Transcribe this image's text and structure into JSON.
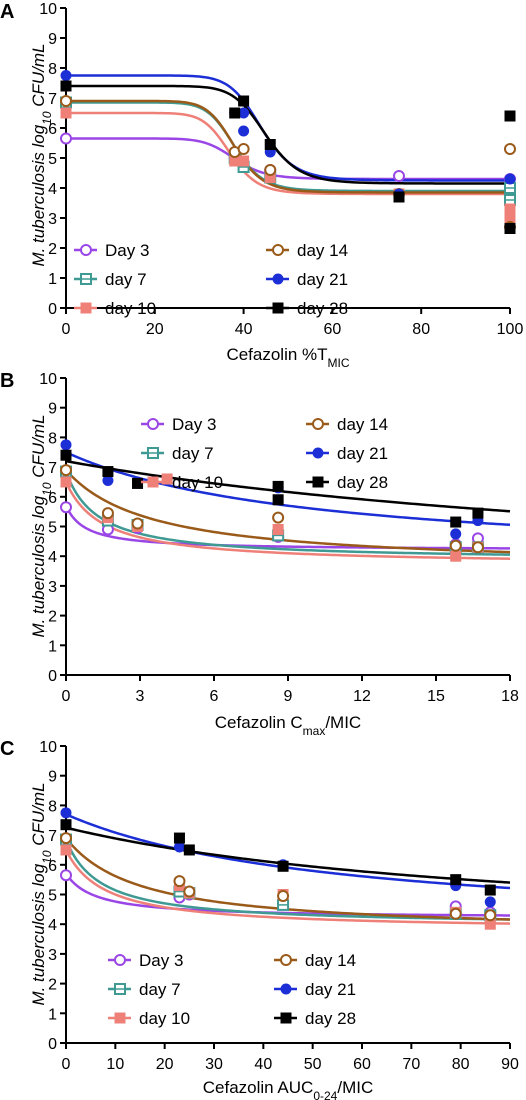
{
  "colors": {
    "day3": "#9a46e6",
    "day7": "#3f9a93",
    "day10": "#ee8078",
    "day14": "#9a5a1a",
    "day21": "#1c2fd6",
    "day28": "#000000"
  },
  "chart_data": [
    {
      "panel": "A",
      "type": "scatter",
      "x_prefix": "Cefazolin %T",
      "x_sub": "MIC",
      "x_suffix": "",
      "y_prefix": "M. tuberculosis log",
      "y_sub": "10",
      "y_suffix": " CFU/mL",
      "xlim": [
        0,
        100
      ],
      "ylim": [
        0,
        10
      ],
      "xticks": [
        0,
        20,
        40,
        60,
        80,
        100
      ],
      "yticks": [
        0,
        1,
        2,
        3,
        4,
        5,
        6,
        7,
        8,
        9,
        10
      ],
      "legend": [
        {
          "key": "day3",
          "label": "Day 3"
        },
        {
          "key": "day14",
          "label": "day 14"
        },
        {
          "key": "day7",
          "label": "day 7"
        },
        {
          "key": "day21",
          "label": "day 21"
        },
        {
          "key": "day10",
          "label": "day 10"
        },
        {
          "key": "day28",
          "label": "day 28"
        }
      ],
      "series": [
        {
          "key": "day3",
          "name": "Day 3",
          "marker": "open-circle",
          "points": [
            [
              0,
              5.65
            ],
            [
              38,
              5.0
            ],
            [
              40,
              4.85
            ],
            [
              46,
              4.6
            ],
            [
              75,
              4.4
            ],
            [
              100,
              4.3
            ],
            [
              100,
              4.0
            ],
            [
              100,
              3.8
            ]
          ],
          "curve": {
            "model": "sigmoid",
            "top": 5.65,
            "bottom": 4.3,
            "ec50": 38,
            "h": 11
          }
        },
        {
          "key": "day7",
          "name": "day 7",
          "marker": "open-square",
          "points": [
            [
              0,
              6.85
            ],
            [
              38,
              5.0
            ],
            [
              40,
              4.7
            ],
            [
              46,
              4.35
            ],
            [
              100,
              4.0
            ],
            [
              100,
              3.6
            ]
          ],
          "curve": {
            "model": "sigmoid",
            "top": 6.85,
            "bottom": 3.9,
            "ec50": 38,
            "h": 12
          }
        },
        {
          "key": "day10",
          "name": "day 10",
          "marker": "filled-square",
          "points": [
            [
              0,
              6.5
            ],
            [
              38,
              4.9
            ],
            [
              40,
              4.9
            ],
            [
              46,
              4.35
            ],
            [
              75,
              3.8
            ],
            [
              100,
              3.0
            ],
            [
              100,
              3.3
            ]
          ],
          "curve": {
            "model": "sigmoid",
            "top": 6.5,
            "bottom": 3.8,
            "ec50": 37,
            "h": 12
          }
        },
        {
          "key": "day14",
          "name": "day 14",
          "marker": "open-circle",
          "points": [
            [
              0,
              6.9
            ],
            [
              38,
              5.2
            ],
            [
              40,
              5.3
            ],
            [
              46,
              4.6
            ],
            [
              75,
              3.8
            ],
            [
              100,
              2.7
            ],
            [
              100,
              5.3
            ]
          ],
          "curve": {
            "model": "sigmoid",
            "top": 6.9,
            "bottom": 3.85,
            "ec50": 38,
            "h": 12
          }
        },
        {
          "key": "day21",
          "name": "day 21",
          "marker": "filled-circle",
          "points": [
            [
              0,
              7.75
            ],
            [
              38,
              6.5
            ],
            [
              40,
              6.5
            ],
            [
              40,
              5.9
            ],
            [
              46,
              5.2
            ],
            [
              75,
              3.8
            ],
            [
              100,
              6.4
            ],
            [
              100,
              4.3
            ]
          ],
          "curve": {
            "model": "sigmoid",
            "top": 7.75,
            "bottom": 4.25,
            "ec50": 44,
            "h": 12
          }
        },
        {
          "key": "day28",
          "name": "day 28",
          "marker": "filled-square",
          "points": [
            [
              0,
              7.4
            ],
            [
              38,
              6.5
            ],
            [
              40,
              6.9
            ],
            [
              46,
              5.45
            ],
            [
              75,
              3.7
            ],
            [
              100,
              2.65
            ],
            [
              100,
              6.4
            ]
          ],
          "curve": {
            "model": "sigmoid",
            "top": 7.4,
            "bottom": 4.15,
            "ec50": 45,
            "h": 12
          }
        }
      ]
    },
    {
      "panel": "B",
      "type": "scatter",
      "x_prefix": "Cefazolin C",
      "x_sub": "max",
      "x_suffix": "/MIC",
      "y_prefix": "M. tuberculosis log",
      "y_sub": "10",
      "y_suffix": " CFU/mL",
      "xlim": [
        0,
        18
      ],
      "ylim": [
        0,
        10
      ],
      "xticks": [
        0,
        3,
        6,
        9,
        12,
        15,
        18
      ],
      "yticks": [
        0,
        1,
        2,
        3,
        4,
        5,
        6,
        7,
        8,
        9,
        10
      ],
      "legend": [
        {
          "key": "day3",
          "label": "Day 3"
        },
        {
          "key": "day14",
          "label": "day 14"
        },
        {
          "key": "day7",
          "label": "day 7"
        },
        {
          "key": "day21",
          "label": "day 21"
        },
        {
          "key": "day10",
          "label": "day 10"
        },
        {
          "key": "day28",
          "label": "day 28"
        }
      ],
      "series": [
        {
          "key": "day3",
          "name": "Day 3",
          "marker": "open-circle",
          "points": [
            [
              0,
              5.65
            ],
            [
              1.7,
              4.9
            ],
            [
              2.9,
              4.95
            ],
            [
              8.6,
              4.65
            ],
            [
              15.8,
              4.4
            ],
            [
              16.7,
              4.6
            ]
          ],
          "curve": {
            "model": "emax",
            "e0": 5.7,
            "emax": 1.5,
            "ec50": 0.8,
            "h": 1
          }
        },
        {
          "key": "day7",
          "name": "day 7",
          "marker": "open-square",
          "points": [
            [
              0,
              6.85
            ],
            [
              1.7,
              5.2
            ],
            [
              2.9,
              5.05
            ],
            [
              8.6,
              4.7
            ],
            [
              15.8,
              4.3
            ],
            [
              16.7,
              4.3
            ]
          ],
          "curve": {
            "model": "emax",
            "e0": 6.85,
            "emax": 3.0,
            "ec50": 1.3,
            "h": 1
          }
        },
        {
          "key": "day10",
          "name": "day 10",
          "marker": "filled-square",
          "points": [
            [
              0,
              6.5
            ],
            [
              1.7,
              5.3
            ],
            [
              2.9,
              5.0
            ],
            [
              4.1,
              6.6
            ],
            [
              8.6,
              4.9
            ],
            [
              15.8,
              4.0
            ],
            [
              16.7,
              4.3
            ]
          ],
          "curve": {
            "model": "emax",
            "e0": 6.5,
            "emax": 2.8,
            "ec50": 1.5,
            "h": 1
          }
        },
        {
          "key": "day14",
          "name": "day 14",
          "marker": "open-circle",
          "points": [
            [
              0,
              6.9
            ],
            [
              1.7,
              5.45
            ],
            [
              2.9,
              5.1
            ],
            [
              8.6,
              5.3
            ],
            [
              15.8,
              4.35
            ],
            [
              16.7,
              4.3
            ]
          ],
          "curve": {
            "model": "emax",
            "e0": 6.9,
            "emax": 3.3,
            "ec50": 3.5,
            "h": 1
          }
        },
        {
          "key": "day21",
          "name": "day 21",
          "marker": "filled-circle",
          "points": [
            [
              0,
              7.75
            ],
            [
              1.7,
              6.55
            ],
            [
              2.9,
              6.5
            ],
            [
              8.6,
              6.3
            ],
            [
              15.8,
              4.75
            ],
            [
              16.7,
              5.2
            ]
          ],
          "curve": {
            "model": "emax",
            "e0": 7.5,
            "emax": 3.8,
            "ec50": 10,
            "h": 1
          }
        },
        {
          "key": "day28",
          "name": "day 28",
          "marker": "filled-square",
          "points": [
            [
              0,
              7.4
            ],
            [
              1.7,
              6.85
            ],
            [
              2.9,
              6.45
            ],
            [
              8.6,
              6.35
            ],
            [
              8.6,
              5.9
            ],
            [
              15.8,
              5.15
            ],
            [
              16.7,
              5.45
            ]
          ],
          "curve": {
            "model": "emax",
            "e0": 7.2,
            "emax": 4.5,
            "ec50": 30,
            "h": 1
          }
        }
      ]
    },
    {
      "panel": "C",
      "type": "scatter",
      "x_prefix": "Cefazolin AUC",
      "x_sub": "0-24",
      "x_suffix": "/MIC",
      "y_prefix": "M. tuberculosis log",
      "y_sub": "10",
      "y_suffix": " CFU/mL",
      "xlim": [
        0,
        90
      ],
      "ylim": [
        0,
        10
      ],
      "xticks": [
        0,
        10,
        20,
        30,
        40,
        50,
        60,
        70,
        80,
        90
      ],
      "yticks": [
        0,
        1,
        2,
        3,
        4,
        5,
        6,
        7,
        8,
        9,
        10
      ],
      "legend": [
        {
          "key": "day3",
          "label": "Day 3"
        },
        {
          "key": "day14",
          "label": "day 14"
        },
        {
          "key": "day7",
          "label": "day 7"
        },
        {
          "key": "day21",
          "label": "day 21"
        },
        {
          "key": "day10",
          "label": "day 10"
        },
        {
          "key": "day28",
          "label": "day 28"
        }
      ],
      "series": [
        {
          "key": "day3",
          "name": "Day 3",
          "marker": "open-circle",
          "points": [
            [
              0,
              5.65
            ],
            [
              23,
              4.9
            ],
            [
              25,
              5.0
            ],
            [
              44,
              4.7
            ],
            [
              79,
              4.6
            ],
            [
              86,
              4.4
            ]
          ],
          "curve": {
            "model": "emax",
            "e0": 5.7,
            "emax": 1.5,
            "ec50": 6,
            "h": 1
          }
        },
        {
          "key": "day7",
          "name": "day 7",
          "marker": "open-square",
          "points": [
            [
              0,
              6.85
            ],
            [
              23,
              5.1
            ],
            [
              25,
              5.05
            ],
            [
              44,
              4.65
            ],
            [
              79,
              4.35
            ],
            [
              86,
              4.3
            ]
          ],
          "curve": {
            "model": "emax",
            "e0": 6.85,
            "emax": 2.9,
            "ec50": 7,
            "h": 1
          }
        },
        {
          "key": "day10",
          "name": "day 10",
          "marker": "filled-square",
          "points": [
            [
              0,
              6.5
            ],
            [
              23,
              5.3
            ],
            [
              25,
              5.05
            ],
            [
              44,
              5.0
            ],
            [
              79,
              4.4
            ],
            [
              86,
              4.0
            ]
          ],
          "curve": {
            "model": "emax",
            "e0": 6.5,
            "emax": 2.7,
            "ec50": 8,
            "h": 1
          }
        },
        {
          "key": "day14",
          "name": "day 14",
          "marker": "open-circle",
          "points": [
            [
              0,
              6.9
            ],
            [
              23,
              5.45
            ],
            [
              25,
              5.1
            ],
            [
              44,
              4.95
            ],
            [
              79,
              4.35
            ],
            [
              86,
              4.3
            ]
          ],
          "curve": {
            "model": "emax",
            "e0": 6.9,
            "emax": 3.2,
            "ec50": 15,
            "h": 1
          }
        },
        {
          "key": "day21",
          "name": "day 21",
          "marker": "filled-circle",
          "points": [
            [
              0,
              7.75
            ],
            [
              23,
              6.6
            ],
            [
              25,
              6.5
            ],
            [
              44,
              6.0
            ],
            [
              79,
              5.3
            ],
            [
              86,
              4.75
            ]
          ],
          "curve": {
            "model": "emax",
            "e0": 7.7,
            "emax": 4.0,
            "ec50": 55,
            "h": 1
          }
        },
        {
          "key": "day28",
          "name": "day 28",
          "marker": "filled-square",
          "points": [
            [
              0,
              7.35
            ],
            [
              23,
              6.9
            ],
            [
              25,
              6.5
            ],
            [
              44,
              5.95
            ],
            [
              79,
              5.5
            ],
            [
              86,
              5.15
            ]
          ],
          "curve": {
            "model": "emax",
            "e0": 7.25,
            "emax": 3.8,
            "ec50": 95,
            "h": 1
          }
        }
      ]
    }
  ]
}
